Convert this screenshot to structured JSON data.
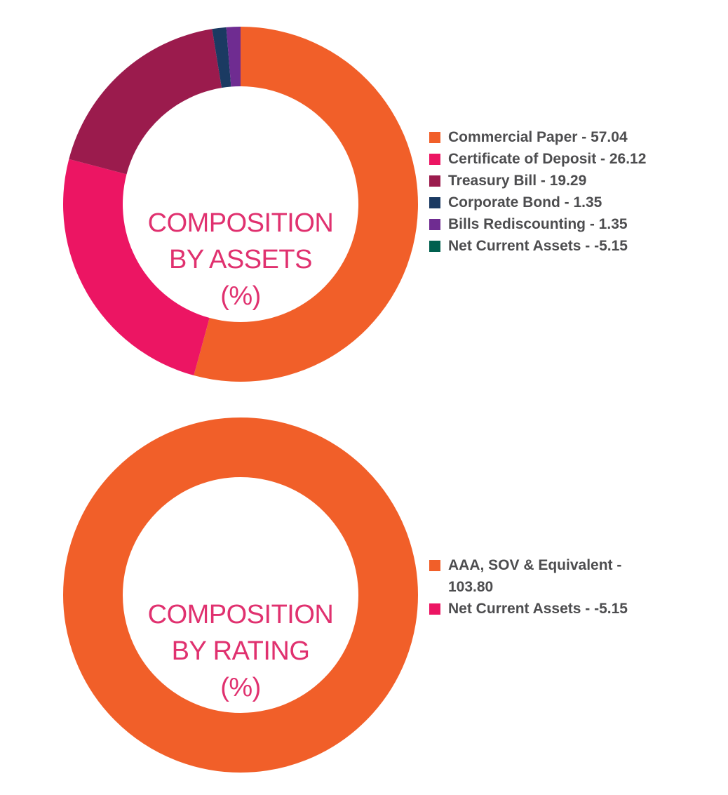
{
  "chart_data": [
    {
      "type": "pie",
      "title": "",
      "center_label_lines": [
        "COMPOSITION",
        "BY ASSETS",
        "(%)"
      ],
      "legend_placement": "right",
      "categories": [
        "Commercial Paper",
        "Certificate of Deposit",
        "Treasury Bill",
        "Corporate Bond",
        "Bills Rediscounting",
        "Net Current Assets"
      ],
      "values": [
        57.04,
        26.12,
        19.29,
        1.35,
        1.35,
        -5.15
      ],
      "colors": [
        "#f15f29",
        "#ec1563",
        "#9b1b4d",
        "#1b3a62",
        "#6f2c91",
        "#00604f"
      ],
      "legend": [
        "Commercial Paper - 57.04",
        "Certificate of Deposit - 26.12",
        "Treasury Bill - 19.29",
        "Corporate Bond - 1.35",
        "Bills Rediscounting - 1.35",
        "Net Current Assets - -5.15"
      ]
    },
    {
      "type": "pie",
      "title": "",
      "center_label_lines": [
        "COMPOSITION",
        "BY RATING",
        "(%)"
      ],
      "legend_placement": "right",
      "categories": [
        "AAA, SOV & Equivalent",
        "Net Current Assets"
      ],
      "values": [
        103.8,
        -5.15
      ],
      "colors": [
        "#f15f29",
        "#ec1563"
      ],
      "legend": [
        "AAA, SOV & Equivalent - 103.80",
        "Net Current Assets - -5.15"
      ]
    }
  ]
}
